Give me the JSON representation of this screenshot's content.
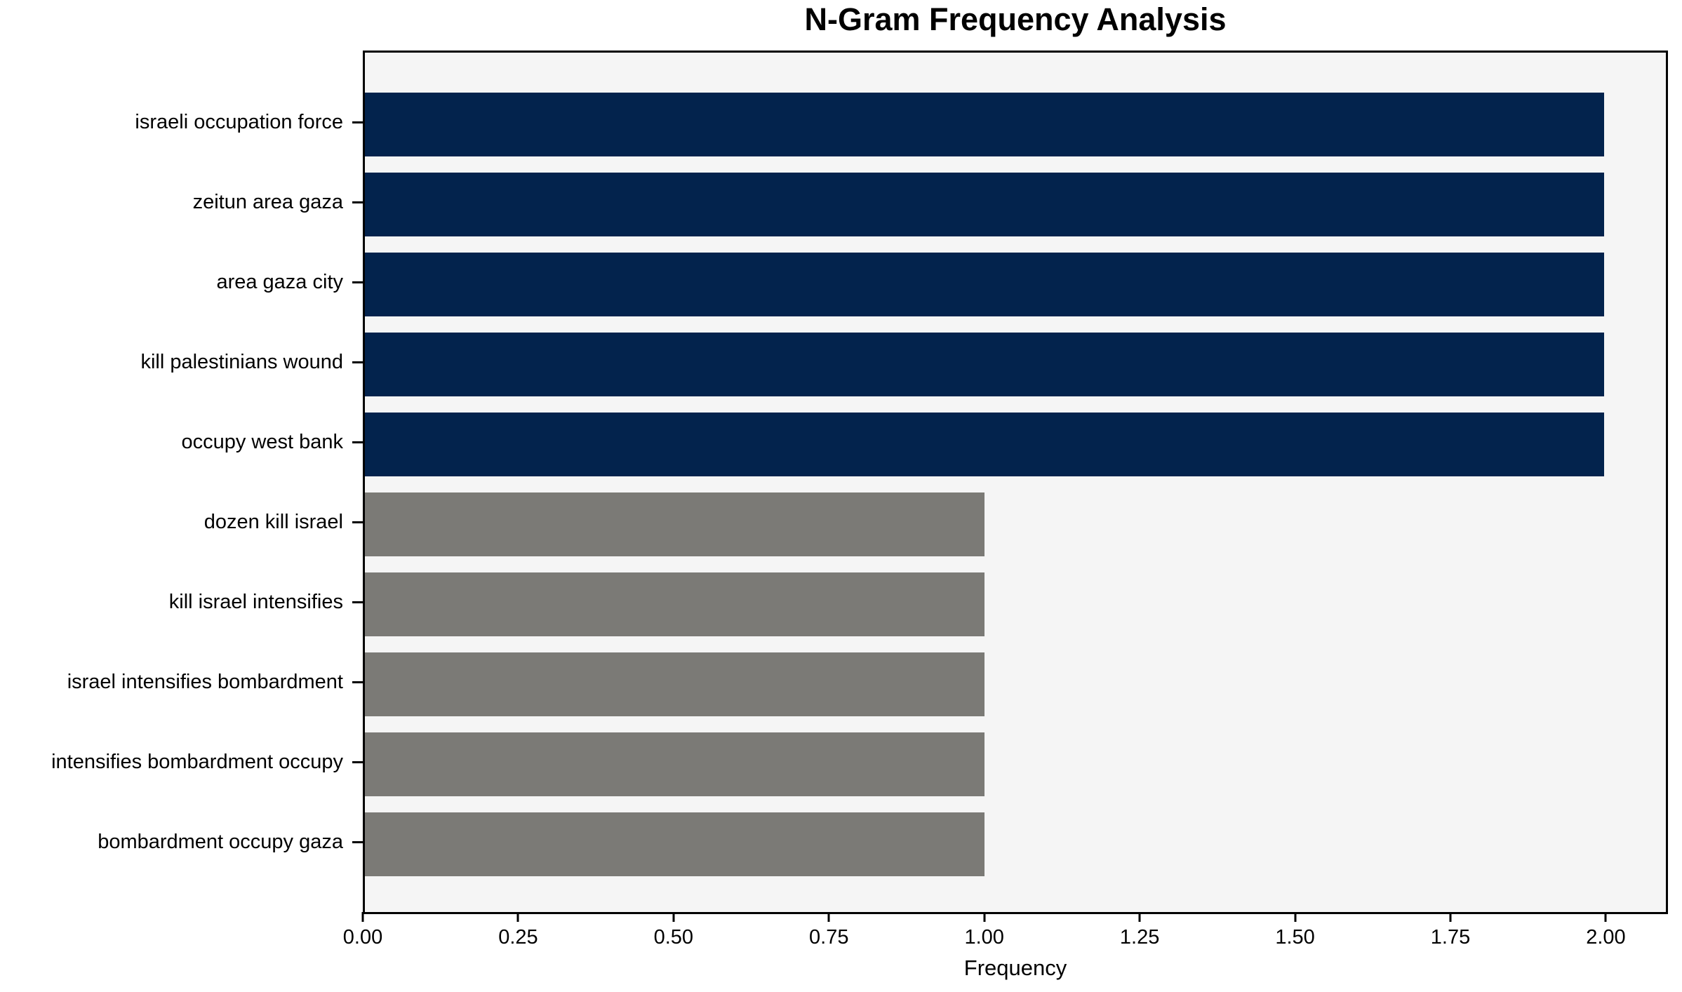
{
  "chart_data": {
    "type": "bar",
    "orientation": "horizontal",
    "title": "N-Gram Frequency Analysis",
    "xlabel": "Frequency",
    "ylabel": "",
    "categories": [
      "israeli occupation force",
      "zeitun area gaza",
      "area gaza city",
      "kill palestinians wound",
      "occupy west bank",
      "dozen kill israel",
      "kill israel intensifies",
      "israel intensifies bombardment",
      "intensifies bombardment occupy",
      "bombardment occupy gaza"
    ],
    "values": [
      2,
      2,
      2,
      2,
      2,
      1,
      1,
      1,
      1,
      1
    ],
    "bar_colors": [
      "#03234d",
      "#03234d",
      "#03234d",
      "#03234d",
      "#03234d",
      "#7b7a76",
      "#7b7a76",
      "#7b7a76",
      "#7b7a76",
      "#7b7a76"
    ],
    "xticks": [
      "0.00",
      "0.25",
      "0.50",
      "0.75",
      "1.00",
      "1.25",
      "1.50",
      "1.75",
      "2.00"
    ],
    "xlim": [
      0,
      2.1
    ],
    "grid": false,
    "legend": null,
    "colors": {
      "high_frequency_bar": "#03234d",
      "low_frequency_bar": "#7b7a76",
      "plot_background": "#f5f5f5",
      "figure_background": "#ffffff",
      "text": "#000000"
    }
  }
}
